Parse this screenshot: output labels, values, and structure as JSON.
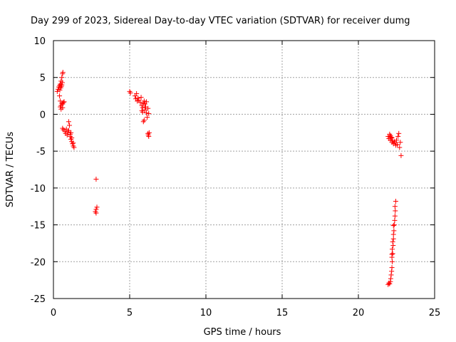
{
  "chart_data": {
    "type": "scatter",
    "title": "Day 299 of 2023, Sidereal Day-to-day VTEC variation (SDTVAR) for receiver dumg",
    "xlabel": "GPS time / hours",
    "ylabel": "SDTVAR / TECUs",
    "xlim": [
      0,
      25
    ],
    "ylim": [
      -25,
      10
    ],
    "xticks": [
      0,
      5,
      10,
      15,
      20,
      25
    ],
    "yticks": [
      -25,
      -20,
      -15,
      -10,
      -5,
      0,
      5,
      10
    ],
    "xtick_labels": [
      "0",
      "5",
      "10",
      "15",
      "20",
      "25"
    ],
    "ytick_labels": [
      "-25",
      "-20",
      "-15",
      "-10",
      "-5",
      "0",
      "5",
      "10"
    ],
    "grid": true,
    "marker": "+",
    "color": "#ff0000",
    "series": [
      {
        "name": "SDTVAR",
        "points": [
          [
            0.25,
            3.1
          ],
          [
            0.3,
            3.4
          ],
          [
            0.35,
            3.7
          ],
          [
            0.4,
            3.9
          ],
          [
            0.42,
            3.3
          ],
          [
            0.45,
            4.1
          ],
          [
            0.48,
            3.6
          ],
          [
            0.5,
            4.5
          ],
          [
            0.52,
            3.8
          ],
          [
            0.55,
            5.0
          ],
          [
            0.58,
            4.3
          ],
          [
            0.6,
            5.5
          ],
          [
            0.62,
            5.7
          ],
          [
            0.55,
            4.0
          ],
          [
            0.4,
            2.5
          ],
          [
            0.45,
            1.8
          ],
          [
            0.5,
            1.2
          ],
          [
            0.55,
            1.5
          ],
          [
            0.6,
            0.9
          ],
          [
            0.65,
            1.6
          ],
          [
            0.5,
            0.7
          ],
          [
            0.45,
            1.0
          ],
          [
            0.6,
            1.4
          ],
          [
            0.7,
            1.7
          ],
          [
            0.6,
            -1.9
          ],
          [
            0.65,
            -2.1
          ],
          [
            0.75,
            -2.3
          ],
          [
            0.8,
            -2.6
          ],
          [
            0.85,
            -2.0
          ],
          [
            0.9,
            -2.8
          ],
          [
            0.95,
            -2.4
          ],
          [
            1.0,
            -2.2
          ],
          [
            1.0,
            -1.0
          ],
          [
            1.05,
            -1.5
          ],
          [
            1.1,
            -2.7
          ],
          [
            1.1,
            -3.0
          ],
          [
            1.15,
            -3.4
          ],
          [
            1.2,
            -3.7
          ],
          [
            1.25,
            -4.0
          ],
          [
            1.3,
            -4.3
          ],
          [
            1.3,
            -3.9
          ],
          [
            1.35,
            -4.5
          ],
          [
            1.2,
            -3.2
          ],
          [
            1.15,
            -2.5
          ],
          [
            2.8,
            -8.8
          ],
          [
            2.75,
            -13.2
          ],
          [
            2.8,
            -12.9
          ],
          [
            2.85,
            -12.6
          ],
          [
            2.8,
            -13.4
          ],
          [
            5.0,
            3.1
          ],
          [
            5.05,
            2.9
          ],
          [
            5.35,
            2.5
          ],
          [
            5.4,
            2.1
          ],
          [
            5.45,
            2.8
          ],
          [
            5.5,
            1.8
          ],
          [
            5.55,
            2.2
          ],
          [
            5.6,
            1.9
          ],
          [
            5.7,
            1.6
          ],
          [
            5.75,
            2.3
          ],
          [
            5.8,
            1.2
          ],
          [
            5.85,
            0.9
          ],
          [
            5.9,
            1.5
          ],
          [
            5.95,
            1.8
          ],
          [
            5.8,
            0.5
          ],
          [
            5.85,
            0.3
          ],
          [
            5.9,
            -1.0
          ],
          [
            5.95,
            -0.8
          ],
          [
            6.0,
            0.6
          ],
          [
            6.05,
            1.0
          ],
          [
            6.1,
            0.2
          ],
          [
            6.15,
            -0.4
          ],
          [
            6.2,
            0.8
          ],
          [
            6.25,
            0.1
          ],
          [
            6.0,
            1.4
          ],
          [
            6.1,
            1.7
          ],
          [
            6.2,
            -2.6
          ],
          [
            6.22,
            -2.8
          ],
          [
            6.25,
            -3.0
          ],
          [
            6.28,
            -2.5
          ],
          [
            21.95,
            -3.0
          ],
          [
            22.0,
            -3.3
          ],
          [
            22.05,
            -2.7
          ],
          [
            22.1,
            -3.5
          ],
          [
            22.15,
            -3.1
          ],
          [
            22.2,
            -3.8
          ],
          [
            22.25,
            -3.6
          ],
          [
            22.3,
            -4.0
          ],
          [
            22.35,
            -3.7
          ],
          [
            22.4,
            -3.9
          ],
          [
            22.45,
            -4.2
          ],
          [
            22.5,
            -3.5
          ],
          [
            22.55,
            -4.1
          ],
          [
            22.6,
            -3.0
          ],
          [
            22.65,
            -2.6
          ],
          [
            22.7,
            -4.5
          ],
          [
            22.75,
            -3.8
          ],
          [
            22.8,
            -5.6
          ],
          [
            22.1,
            -2.9
          ],
          [
            22.2,
            -3.2
          ],
          [
            21.95,
            -23.1
          ],
          [
            22.0,
            -22.9
          ],
          [
            22.05,
            -23.0
          ],
          [
            22.1,
            -22.7
          ],
          [
            22.12,
            -22.3
          ],
          [
            22.15,
            -21.8
          ],
          [
            22.18,
            -21.3
          ],
          [
            22.2,
            -20.8
          ],
          [
            22.22,
            -20.0
          ],
          [
            22.2,
            -19.4
          ],
          [
            22.25,
            -18.9
          ],
          [
            22.22,
            -18.3
          ],
          [
            22.28,
            -17.8
          ],
          [
            22.3,
            -16.9
          ],
          [
            22.3,
            -16.3
          ],
          [
            22.33,
            -15.8
          ],
          [
            22.35,
            -15.0
          ],
          [
            22.38,
            -14.4
          ],
          [
            22.4,
            -13.8
          ],
          [
            22.42,
            -13.1
          ],
          [
            22.4,
            -12.5
          ],
          [
            22.45,
            -11.8
          ],
          [
            22.3,
            -15.1
          ],
          [
            22.25,
            -17.3
          ],
          [
            22.2,
            -19.0
          ]
        ]
      }
    ]
  }
}
